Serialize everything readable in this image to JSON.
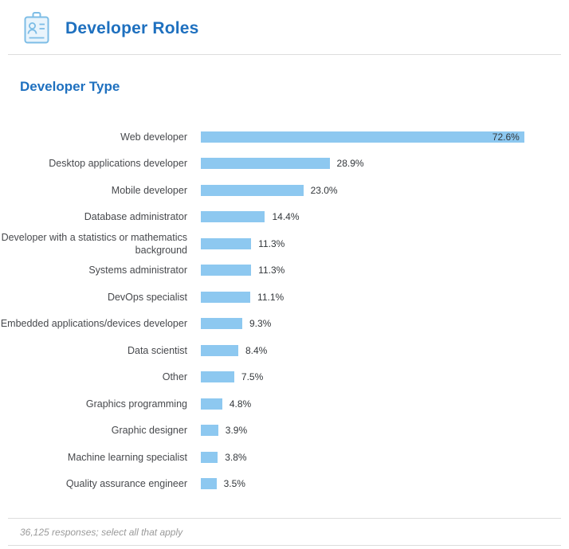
{
  "header": {
    "title": "Developer Roles",
    "icon": "id-badge-icon"
  },
  "section": {
    "title": "Developer Type"
  },
  "footer": {
    "note": "36,125 responses; select all that apply"
  },
  "colors": {
    "heading": "#1E70BF",
    "bar": "#8DC8F0",
    "icon_stroke": "#7DBDE6",
    "icon_fill": "#E9F4FC",
    "label_text": "#47494D",
    "value_text": "#33373B",
    "divider": "#DDDDDD",
    "footer_text": "#9A9A9A"
  },
  "chart_data": {
    "type": "bar",
    "orientation": "horizontal",
    "title": "Developer Type",
    "categories": [
      "Web developer",
      "Desktop applications developer",
      "Mobile developer",
      "Database administrator",
      "Developer with a statistics or mathematics background",
      "Systems administrator",
      "DevOps specialist",
      "Embedded applications/devices developer",
      "Data scientist",
      "Other",
      "Graphics programming",
      "Graphic designer",
      "Machine learning specialist",
      "Quality assurance engineer"
    ],
    "values": [
      72.6,
      28.9,
      23.0,
      14.4,
      11.3,
      11.3,
      11.1,
      9.3,
      8.4,
      7.5,
      4.8,
      3.9,
      3.8,
      3.5
    ],
    "value_labels": [
      "72.6%",
      "28.9%",
      "23.0%",
      "14.4%",
      "11.3%",
      "11.3%",
      "11.1%",
      "9.3%",
      "8.4%",
      "7.5%",
      "4.8%",
      "3.9%",
      "3.8%",
      "3.5%"
    ],
    "value_suffix": "%",
    "xlim": [
      0,
      78
    ],
    "grid": false,
    "legend": false,
    "footnote": "36,125 responses; select all that apply"
  }
}
